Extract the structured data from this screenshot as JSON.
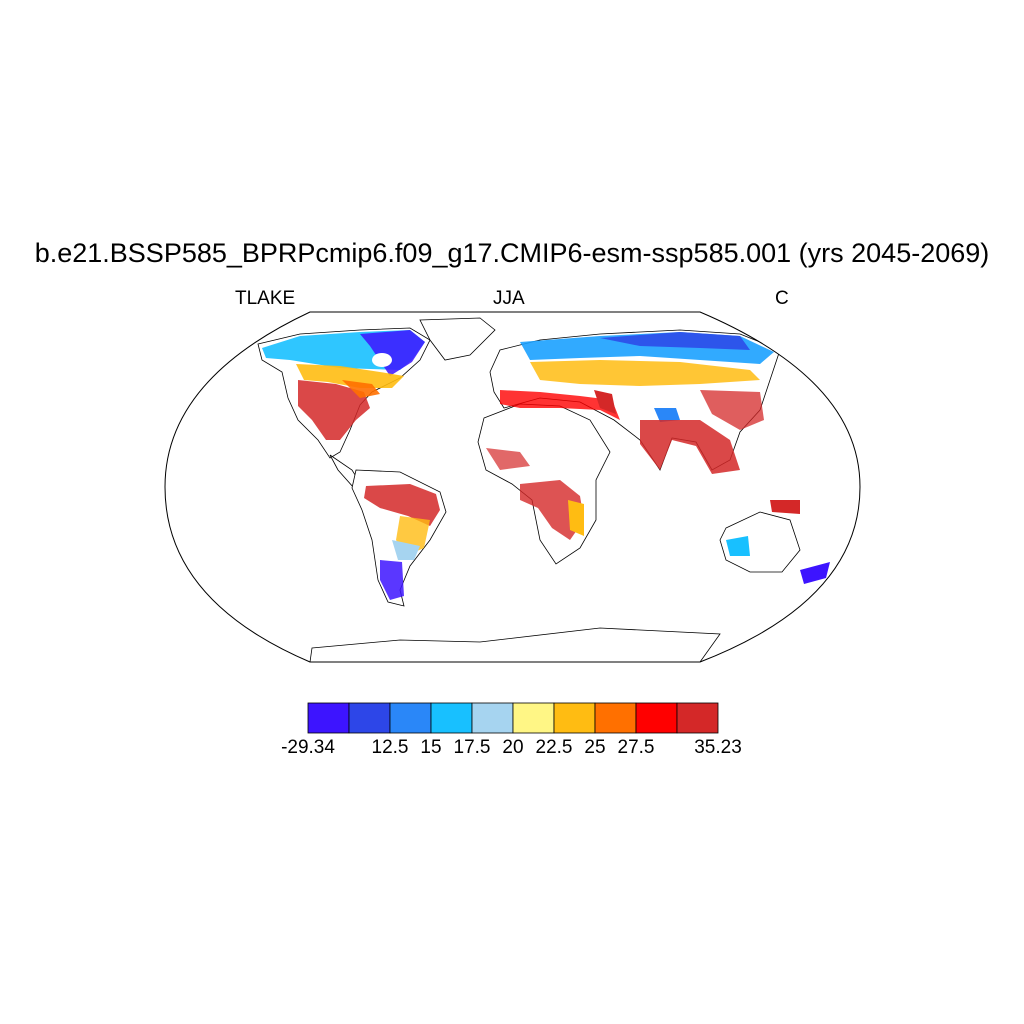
{
  "title": "b.e21.BSSP585_BPRPcmip6.f09_g17.CMIP6-esm-ssp585.001 (yrs 2045-2069)",
  "variable": "TLAKE",
  "season": "JJA",
  "units": "C",
  "map": {
    "projection": "Robinson",
    "field_colors_by_region": [
      {
        "region": "Canada north / Hudson Bay",
        "color": "#3d14ff"
      },
      {
        "region": "Canada south / Alaska",
        "color": "#18c0ff"
      },
      {
        "region": "Great Lakes belt",
        "color": "#ffbc12"
      },
      {
        "region": "Eastern USA",
        "color": "#d42828"
      },
      {
        "region": "Amazon basin",
        "color": "#d42828"
      },
      {
        "region": "Patagonia",
        "color": "#3d14ff"
      },
      {
        "region": "Siberia north",
        "color": "#1ba1ff"
      },
      {
        "region": "Central Asia",
        "color": "#ffbc12"
      },
      {
        "region": "Middle East",
        "color": "#ff0000"
      },
      {
        "region": "India / SE Asia",
        "color": "#d42828"
      },
      {
        "region": "Tibet",
        "color": "#2a87f8"
      },
      {
        "region": "East Africa rift",
        "color": "#ffbc12"
      },
      {
        "region": "SE Australia",
        "color": "#18c0ff"
      },
      {
        "region": "New Zealand",
        "color": "#3d14ff"
      }
    ]
  },
  "colorbar": {
    "colors": [
      "#3d14ff",
      "#2d46e8",
      "#2a87f8",
      "#18c0ff",
      "#a6d4f0",
      "#fff685",
      "#ffbc12",
      "#ff7000",
      "#ff0000",
      "#d42828"
    ],
    "tick_labels": [
      "-29.34",
      "12.5",
      "15",
      "17.5",
      "20",
      "22.5",
      "25",
      "27.5",
      "35.23"
    ]
  }
}
